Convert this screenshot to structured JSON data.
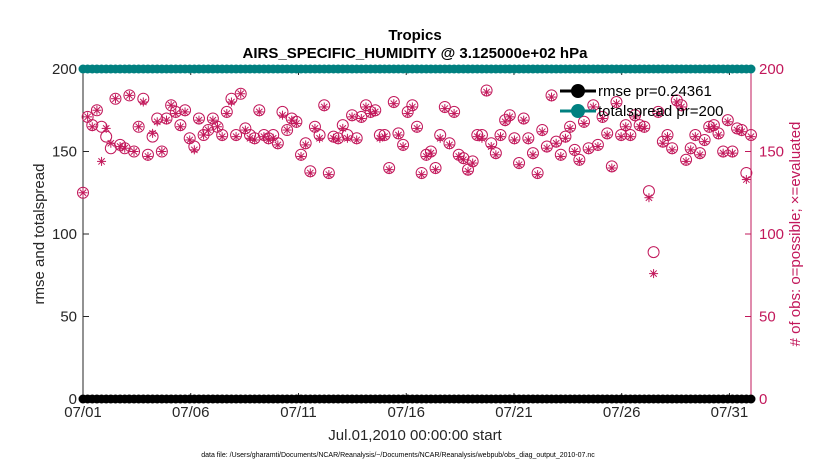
{
  "chart_data": {
    "type": "scatter",
    "title": "Tropics",
    "subtitle": "AIRS_SPECIFIC_HUMIDITY @ 3.125000e+02 hPa",
    "xlabel": "Jul.01,2010 00:00:00 start",
    "ylabel": "rmse and totalspread",
    "ylabel_right": "# of obs: o=possible; ×=evaluated",
    "x_ticks": [
      "07/01",
      "07/06",
      "07/11",
      "07/16",
      "07/21",
      "07/26",
      "07/31"
    ],
    "x_tick_values": [
      1,
      6,
      11,
      16,
      21,
      26,
      31
    ],
    "xlim": [
      1,
      32
    ],
    "ylim": [
      0,
      200
    ],
    "y_ticks": [
      "0",
      "50",
      "100",
      "150",
      "200"
    ],
    "y_tick_values": [
      0,
      50,
      100,
      150,
      200
    ],
    "y2lim": [
      0,
      200
    ],
    "y2_ticks": [
      "0",
      "50",
      "100",
      "150",
      "200"
    ],
    "y2_tick_values": [
      0,
      50,
      100,
      150,
      200
    ],
    "legend_position": "top-right",
    "series": [
      {
        "name": "rmse pr=0.24361",
        "color": "#000000",
        "marker": "filled-circle",
        "constant_value": 0
      },
      {
        "name": "totalspread pr=200",
        "color": "#008080",
        "marker": "filled-circle",
        "constant_value": 200
      }
    ],
    "obs_color": "#c2185b",
    "obs_possible": [
      125,
      171,
      166,
      175,
      165,
      159,
      152,
      182,
      154,
      152,
      184,
      150,
      165,
      182,
      148,
      159,
      170,
      150,
      170,
      178,
      174,
      166,
      175,
      158,
      153,
      170,
      160,
      163,
      170,
      165,
      160,
      174,
      182,
      160,
      185,
      164,
      160,
      158,
      175,
      160,
      158,
      160,
      155,
      174,
      163,
      170,
      168,
      148,
      155,
      138,
      165,
      160,
      178,
      137,
      159,
      158,
      166,
      160,
      172,
      158,
      171,
      178,
      174,
      175,
      160,
      160,
      140,
      180,
      161,
      154,
      174,
      178,
      165,
      137,
      148,
      150,
      140,
      160,
      177,
      155,
      174,
      148,
      146,
      139,
      144,
      160,
      160,
      187,
      155,
      149,
      160,
      169,
      172,
      158,
      143,
      170,
      158,
      149,
      137,
      163,
      153,
      184,
      156,
      148,
      159,
      165,
      151,
      145,
      168,
      152,
      178,
      154,
      171,
      161,
      141,
      180,
      160,
      166,
      160,
      172,
      166,
      165,
      126,
      89,
      174,
      156,
      160,
      152,
      181,
      178,
      145,
      152,
      160,
      149,
      157,
      165,
      166,
      161,
      150,
      169,
      150,
      164,
      163,
      137,
      160
    ],
    "obs_evaluated": [
      125,
      171,
      165,
      175,
      144,
      164,
      155,
      182,
      153,
      152,
      184,
      150,
      165,
      180,
      147,
      161,
      168,
      150,
      169,
      178,
      173,
      165,
      174,
      157,
      151,
      169,
      160,
      163,
      169,
      165,
      159,
      173,
      180,
      159,
      185,
      163,
      158,
      157,
      174,
      159,
      157,
      158,
      154,
      172,
      163,
      169,
      167,
      147,
      154,
      137,
      164,
      158,
      177,
      136,
      158,
      157,
      164,
      158,
      171,
      157,
      170,
      177,
      173,
      174,
      158,
      159,
      139,
      179,
      160,
      153,
      173,
      177,
      164,
      136,
      147,
      149,
      139,
      158,
      176,
      154,
      173,
      147,
      145,
      138,
      143,
      159,
      158,
      186,
      153,
      148,
      159,
      168,
      171,
      157,
      142,
      169,
      157,
      148,
      136,
      162,
      152,
      183,
      155,
      147,
      158,
      164,
      150,
      144,
      167,
      151,
      177,
      153,
      170,
      160,
      140,
      179,
      159,
      165,
      159,
      171,
      165,
      164,
      122,
      76,
      173,
      155,
      159,
      151,
      180,
      177,
      144,
      151,
      159,
      148,
      156,
      164,
      165,
      160,
      149,
      168,
      149,
      163,
      162,
      133,
      159
    ],
    "footnote": "data file: /Users/gharamti/Documents/NCAR/Reanalysis/~/Documents/NCAR/Reanalysis/webpub/obs_diag_output_2010-07.nc"
  },
  "colors": {
    "axis": "#262626",
    "right_axis": "#c2185b",
    "rmse": "#000000",
    "totalspread": "#008080"
  }
}
